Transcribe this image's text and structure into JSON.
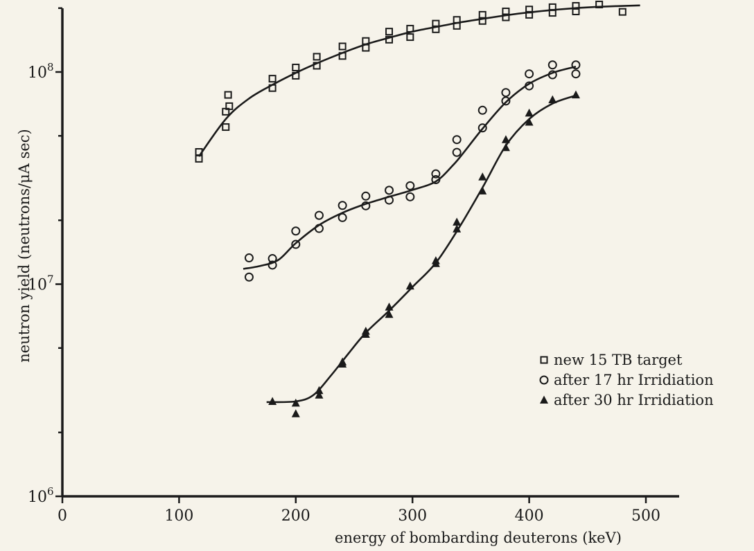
{
  "chart_data": {
    "type": "scatter",
    "xlabel": "energy of bombarding deuterons (keV)",
    "ylabel": "neutron yield (neutrons/μA sec)",
    "xlim": [
      0,
      500
    ],
    "ylim": [
      1000000,
      200000000
    ],
    "yscale": "log",
    "x_ticks": [
      "0",
      "100",
      "200",
      "300",
      "400",
      "500"
    ],
    "y_tick_bases": [
      "10",
      "10",
      "10"
    ],
    "y_tick_exps": [
      "6",
      "7",
      "8"
    ],
    "y_tick_values": [
      1000000,
      10000000,
      100000000
    ],
    "legend_position": "right",
    "series": [
      {
        "name": "new 15 TB target",
        "marker": "square",
        "points": [
          [
            117,
            42000000
          ],
          [
            117,
            39000000
          ],
          [
            140,
            65000000
          ],
          [
            140,
            55000000
          ],
          [
            142,
            78000000
          ],
          [
            143,
            69000000
          ],
          [
            180,
            93000000
          ],
          [
            180,
            84000000
          ],
          [
            200,
            105000000
          ],
          [
            200,
            96000000
          ],
          [
            218,
            118000000
          ],
          [
            218,
            107000000
          ],
          [
            240,
            132000000
          ],
          [
            240,
            119000000
          ],
          [
            260,
            140000000
          ],
          [
            260,
            130000000
          ],
          [
            280,
            155000000
          ],
          [
            280,
            142000000
          ],
          [
            298,
            160000000
          ],
          [
            298,
            146000000
          ],
          [
            320,
            169000000
          ],
          [
            320,
            159000000
          ],
          [
            338,
            176000000
          ],
          [
            338,
            165000000
          ],
          [
            360,
            186000000
          ],
          [
            360,
            174000000
          ],
          [
            380,
            193000000
          ],
          [
            380,
            181000000
          ],
          [
            400,
            197000000
          ],
          [
            400,
            186000000
          ],
          [
            420,
            202000000
          ],
          [
            420,
            190000000
          ],
          [
            440,
            205000000
          ],
          [
            440,
            193000000
          ],
          [
            460,
            208000000
          ],
          [
            480,
            192000000
          ]
        ],
        "curve": [
          [
            117,
            40000000
          ],
          [
            140,
            60000000
          ],
          [
            160,
            75000000
          ],
          [
            180,
            87000000
          ],
          [
            200,
            99000000
          ],
          [
            220,
            111000000
          ],
          [
            240,
            123000000
          ],
          [
            260,
            135000000
          ],
          [
            280,
            145000000
          ],
          [
            300,
            155000000
          ],
          [
            320,
            163000000
          ],
          [
            340,
            171000000
          ],
          [
            360,
            178000000
          ],
          [
            380,
            185000000
          ],
          [
            400,
            191000000
          ],
          [
            420,
            196000000
          ],
          [
            440,
            200000000
          ],
          [
            460,
            203000000
          ],
          [
            495,
            206000000
          ]
        ]
      },
      {
        "name": "after 17 hr Irridiation",
        "marker": "circle",
        "points": [
          [
            160,
            13300000
          ],
          [
            160,
            10800000
          ],
          [
            180,
            13200000
          ],
          [
            180,
            12300000
          ],
          [
            200,
            17800000
          ],
          [
            200,
            15400000
          ],
          [
            220,
            21100000
          ],
          [
            220,
            18300000
          ],
          [
            240,
            23500000
          ],
          [
            240,
            20600000
          ],
          [
            260,
            26000000
          ],
          [
            260,
            23400000
          ],
          [
            280,
            27700000
          ],
          [
            280,
            24900000
          ],
          [
            298,
            29100000
          ],
          [
            298,
            25800000
          ],
          [
            320,
            33100000
          ],
          [
            320,
            31100000
          ],
          [
            338,
            48000000
          ],
          [
            338,
            41800000
          ],
          [
            360,
            66000000
          ],
          [
            360,
            54500000
          ],
          [
            380,
            80000000
          ],
          [
            380,
            73000000
          ],
          [
            400,
            98000000
          ],
          [
            400,
            86000000
          ],
          [
            420,
            108000000
          ],
          [
            420,
            97000000
          ],
          [
            440,
            108000000
          ],
          [
            440,
            98000000
          ]
        ],
        "curve": [
          [
            155,
            11800000
          ],
          [
            170,
            12200000
          ],
          [
            185,
            13000000
          ],
          [
            200,
            15600000
          ],
          [
            220,
            19000000
          ],
          [
            240,
            21700000
          ],
          [
            260,
            23900000
          ],
          [
            280,
            25800000
          ],
          [
            300,
            27800000
          ],
          [
            320,
            30500000
          ],
          [
            335,
            36500000
          ],
          [
            345,
            42500000
          ],
          [
            360,
            54000000
          ],
          [
            380,
            72000000
          ],
          [
            400,
            88000000
          ],
          [
            420,
            99000000
          ],
          [
            440,
            106000000
          ]
        ]
      },
      {
        "name": "after 30 hr Irridiation",
        "marker": "triangle",
        "points": [
          [
            180,
            2800000
          ],
          [
            200,
            2750000
          ],
          [
            200,
            2450000
          ],
          [
            220,
            3150000
          ],
          [
            220,
            3000000
          ],
          [
            240,
            4300000
          ],
          [
            240,
            4200000
          ],
          [
            260,
            6000000
          ],
          [
            260,
            5800000
          ],
          [
            280,
            7800000
          ],
          [
            280,
            7200000
          ],
          [
            298,
            9800000
          ],
          [
            320,
            12900000
          ],
          [
            320,
            12500000
          ],
          [
            338,
            19600000
          ],
          [
            338,
            18200000
          ],
          [
            360,
            32000000
          ],
          [
            360,
            27500000
          ],
          [
            380,
            48000000
          ],
          [
            380,
            44000000
          ],
          [
            400,
            64000000
          ],
          [
            400,
            58000000
          ],
          [
            420,
            74000000
          ],
          [
            440,
            78000000
          ]
        ],
        "curve": [
          [
            175,
            2780000
          ],
          [
            200,
            2800000
          ],
          [
            215,
            3000000
          ],
          [
            230,
            3700000
          ],
          [
            245,
            4700000
          ],
          [
            260,
            5900000
          ],
          [
            280,
            7500000
          ],
          [
            300,
            9700000
          ],
          [
            320,
            12600000
          ],
          [
            340,
            18500000
          ],
          [
            360,
            28500000
          ],
          [
            380,
            45000000
          ],
          [
            400,
            60000000
          ],
          [
            420,
            71000000
          ],
          [
            440,
            77500000
          ]
        ]
      }
    ]
  }
}
